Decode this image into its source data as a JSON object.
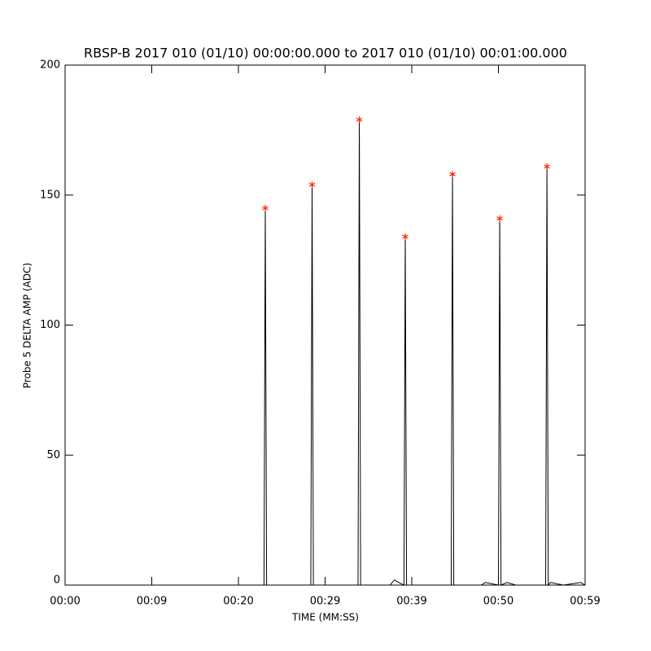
{
  "chart_data": {
    "type": "line",
    "title": "RBSP-B 2017 010 (01/10) 00:00:00.000 to 2017 010 (01/10) 00:01:00.000",
    "x_label": "TIME (MM:SS)",
    "y_label": "Probe 5 DELTA AMP (ADC)",
    "xlim": [
      0,
      60
    ],
    "ylim": [
      0,
      200
    ],
    "xticks": [
      {
        "value": 0,
        "label": "00:00"
      },
      {
        "value": 10,
        "label": "00:09"
      },
      {
        "value": 20,
        "label": "00:20"
      },
      {
        "value": 30,
        "label": "00:29"
      },
      {
        "value": 40,
        "label": "00:39"
      },
      {
        "value": 50,
        "label": "00:50"
      },
      {
        "value": 60,
        "label": "00:59"
      }
    ],
    "yticks": [
      0,
      50,
      100,
      150,
      200
    ],
    "series": [
      {
        "color": "#000000",
        "marker": "none",
        "x": [
          0,
          22.95,
          23.1,
          23.25,
          28.35,
          28.5,
          28.65,
          33.8,
          33.95,
          34.1,
          37.5,
          38,
          38.5,
          39.1,
          39.25,
          39.4,
          44.55,
          44.7,
          44.85,
          48,
          48.5,
          50,
          50.15,
          50.3,
          51,
          52,
          55.45,
          55.6,
          55.75,
          56,
          57.5,
          59.5,
          60
        ],
        "values": [
          0,
          0,
          145,
          0,
          0,
          154,
          0,
          0,
          179,
          0,
          0,
          2,
          1,
          0,
          134,
          0,
          0,
          158,
          0,
          0,
          1,
          0,
          141,
          0,
          1,
          0,
          0,
          161,
          0,
          1,
          0,
          1,
          0
        ]
      },
      {
        "color": "#ff2200",
        "marker": "star",
        "x": [
          23.1,
          28.5,
          33.95,
          39.25,
          44.7,
          50.15,
          55.6
        ],
        "values": [
          145,
          154,
          179,
          134,
          158,
          141,
          161
        ]
      }
    ]
  }
}
